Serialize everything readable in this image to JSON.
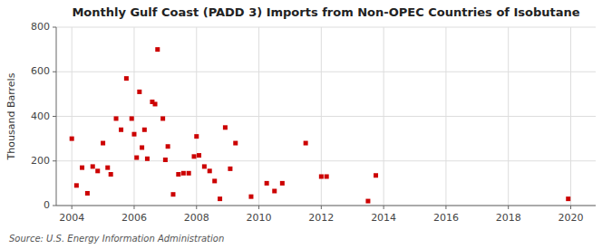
{
  "chart_data": {
    "type": "scatter",
    "title": "Monthly Gulf Coast (PADD 3) Imports from Non-OPEC Countries of Isobutane",
    "ylabel": "Thousand Barrels",
    "annotations": [
      "Source: U.S. Energy Information Administration"
    ],
    "color": "#cc0000",
    "marker": "square",
    "grid": true,
    "xlim": [
      2003.5,
      2020.8
    ],
    "ylim": [
      0,
      800
    ],
    "yticks": [
      0,
      200,
      400,
      600,
      800
    ],
    "xticks": [
      2004,
      2006,
      2008,
      2010,
      2012,
      2014,
      2016,
      2018,
      2020
    ],
    "x": [
      2004.0,
      2004.15,
      2004.33,
      2004.5,
      2004.67,
      2004.83,
      2005.0,
      2005.15,
      2005.25,
      2005.42,
      2005.58,
      2005.75,
      2005.92,
      2006.0,
      2006.08,
      2006.17,
      2006.25,
      2006.33,
      2006.42,
      2006.58,
      2006.67,
      2006.75,
      2006.92,
      2007.0,
      2007.08,
      2007.25,
      2007.42,
      2007.58,
      2007.75,
      2007.92,
      2008.0,
      2008.08,
      2008.25,
      2008.42,
      2008.58,
      2008.75,
      2008.92,
      2009.08,
      2009.25,
      2009.75,
      2010.25,
      2010.5,
      2010.75,
      2011.5,
      2012.0,
      2012.17,
      2013.5,
      2013.75,
      2019.92
    ],
    "values": [
      300,
      90,
      170,
      55,
      175,
      155,
      280,
      170,
      140,
      390,
      340,
      570,
      390,
      320,
      215,
      510,
      260,
      340,
      210,
      465,
      455,
      700,
      390,
      205,
      265,
      50,
      140,
      145,
      145,
      220,
      310,
      225,
      175,
      155,
      110,
      30,
      350,
      165,
      280,
      40,
      100,
      65,
      100,
      280,
      130,
      130,
      20,
      135,
      30
    ]
  }
}
